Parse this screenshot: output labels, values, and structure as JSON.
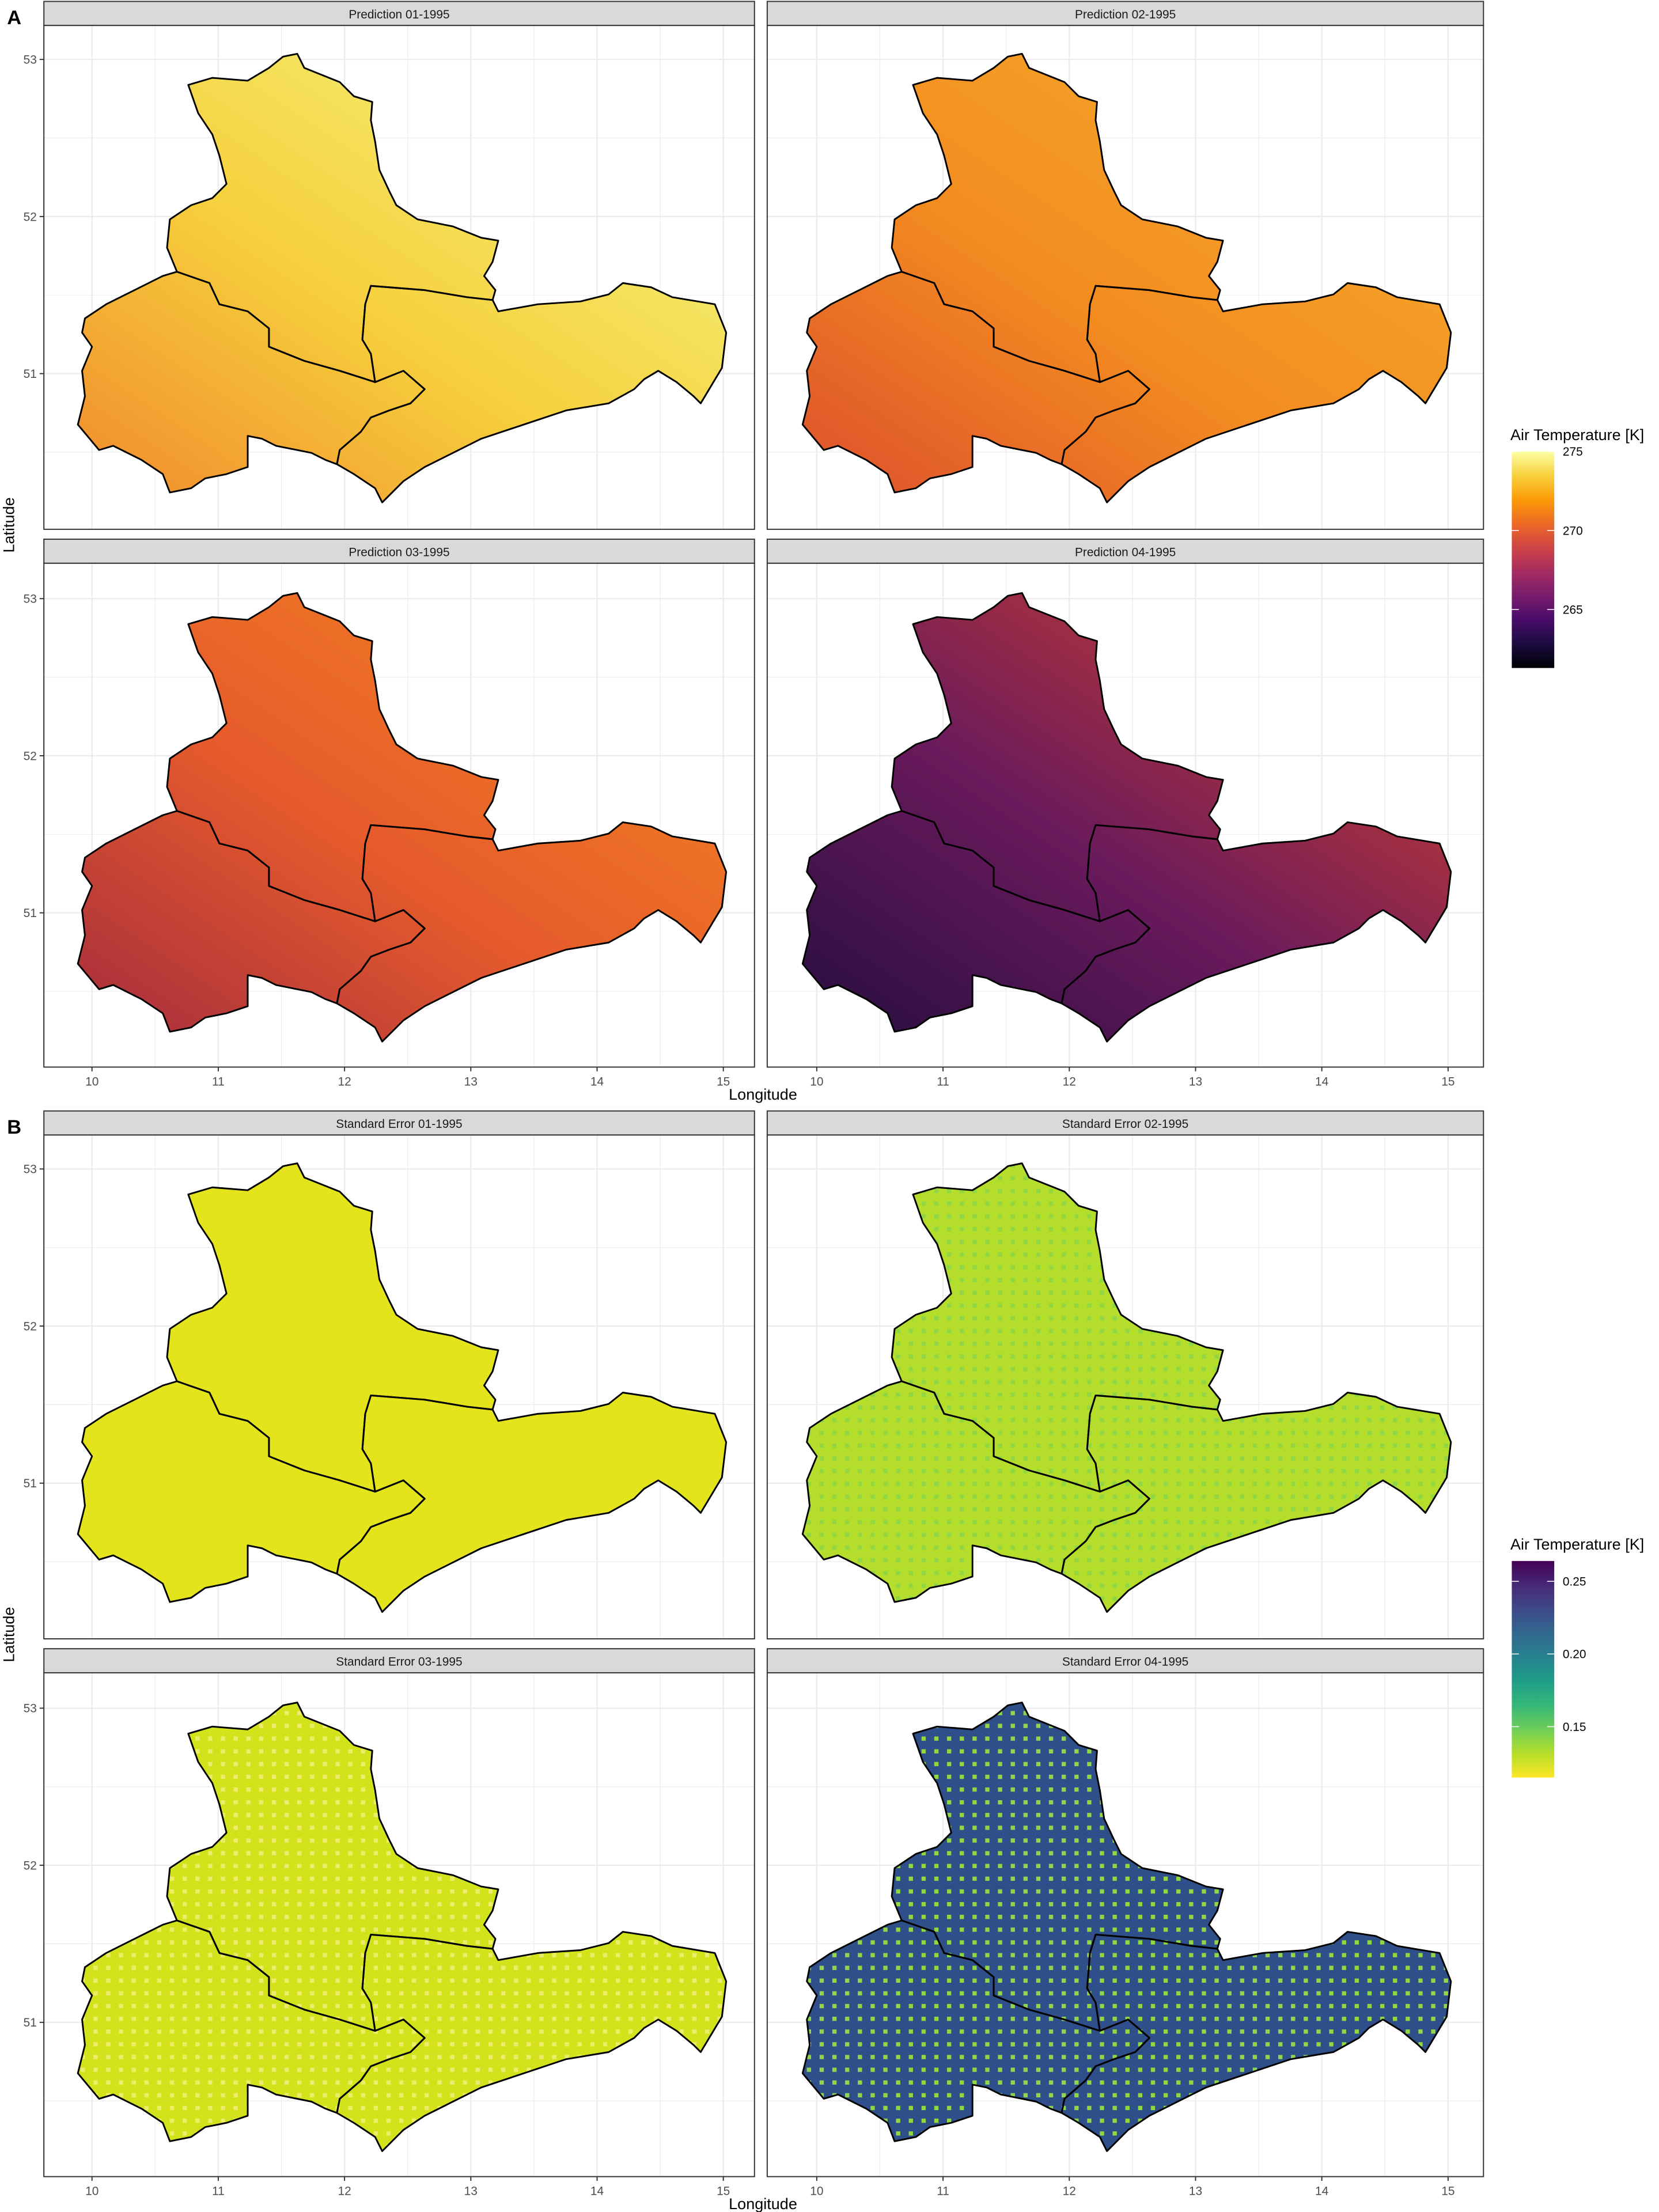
{
  "figure": {
    "panel_label_a": "A",
    "panel_label_b": "B"
  },
  "chart_data": [
    {
      "type": "heatmap",
      "subtype": "raster-map-facets",
      "panel_label": "A",
      "facets": [
        "Prediction 01-1995",
        "Prediction 02-1995",
        "Prediction 03-1995",
        "Prediction 04-1995"
      ],
      "facet_fill_colors": [
        [
          "#f07f2a",
          "#f6cf3c",
          "#f3f47c"
        ],
        [
          "#d9462f",
          "#f38b20",
          "#f6ac2a"
        ],
        [
          "#9c2540",
          "#e55a2c",
          "#f48420"
        ],
        [
          "#1c0c3a",
          "#6a1a5c",
          "#d0402c"
        ]
      ],
      "xlabel": "Longitude",
      "ylabel": "Latitude",
      "x_ticks": [
        10,
        11,
        12,
        13,
        14,
        15
      ],
      "y_ticks": [
        51,
        52,
        53
      ],
      "xlim": [
        9.62,
        15.25
      ],
      "ylim": [
        50.0,
        53.22
      ],
      "grid": true,
      "legend": {
        "title": "Air Temperature [K]",
        "ticks": [
          275,
          270,
          265
        ],
        "range": [
          261.3,
          275.0
        ],
        "colormap": "inferno",
        "colors": [
          "#fcffa4",
          "#f7d13d",
          "#fb9b06",
          "#ed6925",
          "#cf4446",
          "#a52c60",
          "#781c6d",
          "#4a0c6b",
          "#1b0c41",
          "#000004"
        ],
        "placement": "right"
      }
    },
    {
      "type": "heatmap",
      "subtype": "raster-map-facets",
      "panel_label": "B",
      "facets": [
        "Standard Error 01-1995",
        "Standard Error 02-1995",
        "Standard Error 03-1995",
        "Standard Error 04-1995"
      ],
      "facet_fill_colors": [
        [
          "#e3e41c",
          "#e3e41c"
        ],
        [
          "#b5dd2b",
          "#90d743"
        ],
        [
          "#d2e21b",
          "#eeed6a"
        ],
        [
          "#2f4f8a",
          "#8fd744"
        ]
      ],
      "xlabel": "Longitude",
      "ylabel": "Latitude",
      "x_ticks": [
        10,
        11,
        12,
        13,
        14,
        15
      ],
      "y_ticks": [
        51,
        52,
        53
      ],
      "xlim": [
        9.62,
        15.25
      ],
      "ylim": [
        50.0,
        53.22
      ],
      "grid": true,
      "legend": {
        "title": "Air Temperature [K]",
        "ticks": [
          0.25,
          0.2,
          0.15
        ],
        "tick_labels": [
          "0.25",
          "0.20",
          "0.15"
        ],
        "range": [
          0.115,
          0.264
        ],
        "colormap": "viridis (reversed)",
        "colors": [
          "#fde725",
          "#b5de2b",
          "#6ece58",
          "#35b779",
          "#1f9e89",
          "#26828e",
          "#31688e",
          "#3e4989",
          "#482878",
          "#440154"
        ],
        "placement": "right"
      }
    }
  ]
}
